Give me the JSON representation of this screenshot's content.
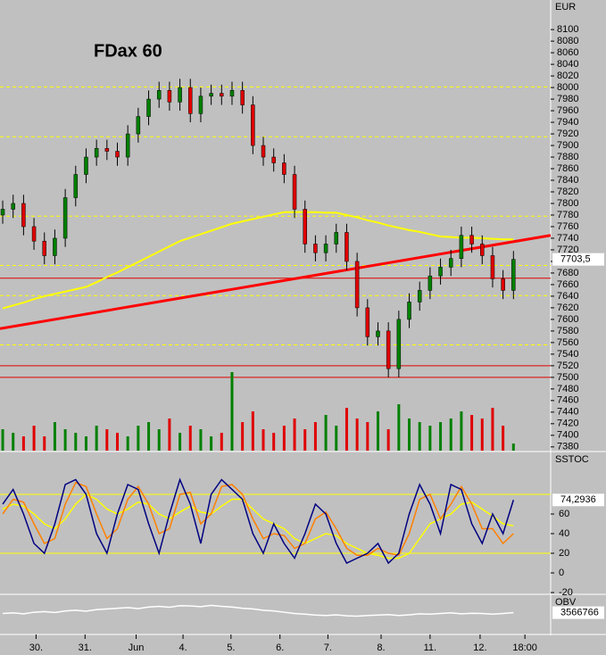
{
  "chart_data": [
    {
      "type": "candlestick",
      "title": "FDax 60",
      "axis_label": "EUR",
      "last_label": {
        "value": 7703.5,
        "label": "7703,5"
      },
      "up_color": "#008000",
      "down_color": "#e00000",
      "ma_color": "#ffff00",
      "xlim": [
        -0.26,
        52.57
      ],
      "xticks": [
        {
          "value": 3.2,
          "label": "30."
        },
        {
          "value": 7.9,
          "label": "31."
        },
        {
          "value": 12.8,
          "label": "Jun"
        },
        {
          "value": 17.3,
          "label": "4."
        },
        {
          "value": 21.9,
          "label": "5."
        },
        {
          "value": 26.6,
          "label": "6."
        },
        {
          "value": 31.2,
          "label": "7."
        },
        {
          "value": 36.3,
          "label": "8."
        },
        {
          "value": 41,
          "label": "11."
        },
        {
          "value": 45.8,
          "label": "12."
        },
        {
          "value": 50.1,
          "label": "18:00"
        }
      ],
      "ylim": [
        7372,
        8151
      ],
      "yticks": [
        8100,
        8080,
        8060,
        8040,
        8020,
        8000,
        7980,
        7960,
        7940,
        7920,
        7900,
        7880,
        7860,
        7840,
        7820,
        7800,
        7780,
        7760,
        7740,
        7720,
        7700,
        7680,
        7660,
        7640,
        7620,
        7600,
        7580,
        7560,
        7540,
        7520,
        7500,
        7480,
        7460,
        7440,
        7420,
        7400,
        7380
      ],
      "candles": [
        [
          7780,
          7805,
          7765,
          7790
        ],
        [
          7790,
          7815,
          7775,
          7800
        ],
        [
          7800,
          7815,
          7745,
          7760
        ],
        [
          7760,
          7775,
          7720,
          7735
        ],
        [
          7735,
          7750,
          7695,
          7710
        ],
        [
          7710,
          7755,
          7695,
          7740
        ],
        [
          7740,
          7825,
          7725,
          7810
        ],
        [
          7810,
          7865,
          7795,
          7850
        ],
        [
          7850,
          7895,
          7835,
          7880
        ],
        [
          7880,
          7910,
          7865,
          7895
        ],
        [
          7895,
          7910,
          7875,
          7890
        ],
        [
          7890,
          7905,
          7865,
          7880
        ],
        [
          7880,
          7935,
          7865,
          7920
        ],
        [
          7920,
          7965,
          7905,
          7950
        ],
        [
          7950,
          7995,
          7935,
          7980
        ],
        [
          7980,
          8010,
          7965,
          7995
        ],
        [
          7995,
          8010,
          7960,
          7975
        ],
        [
          7975,
          8015,
          7960,
          8000
        ],
        [
          8000,
          8015,
          7940,
          7955
        ],
        [
          7955,
          8000,
          7940,
          7985
        ],
        [
          7985,
          8005,
          7970,
          7990
        ],
        [
          7990,
          8005,
          7970,
          7985
        ],
        [
          7985,
          8010,
          7970,
          7995
        ],
        [
          7995,
          8010,
          7955,
          7970
        ],
        [
          7970,
          7985,
          7885,
          7900
        ],
        [
          7900,
          7915,
          7865,
          7880
        ],
        [
          7880,
          7895,
          7855,
          7870
        ],
        [
          7870,
          7885,
          7835,
          7850
        ],
        [
          7850,
          7865,
          7775,
          7790
        ],
        [
          7790,
          7805,
          7715,
          7730
        ],
        [
          7730,
          7745,
          7700,
          7715
        ],
        [
          7715,
          7745,
          7700,
          7730
        ],
        [
          7730,
          7765,
          7715,
          7750
        ],
        [
          7750,
          7765,
          7685,
          7700
        ],
        [
          7700,
          7715,
          7605,
          7620
        ],
        [
          7620,
          7635,
          7555,
          7570
        ],
        [
          7570,
          7595,
          7555,
          7580
        ],
        [
          7580,
          7595,
          7500,
          7515
        ],
        [
          7515,
          7615,
          7500,
          7600
        ],
        [
          7600,
          7645,
          7585,
          7630
        ],
        [
          7630,
          7665,
          7615,
          7650
        ],
        [
          7650,
          7690,
          7635,
          7675
        ],
        [
          7675,
          7705,
          7660,
          7690
        ],
        [
          7690,
          7720,
          7675,
          7705
        ],
        [
          7705,
          7760,
          7690,
          7745
        ],
        [
          7745,
          7760,
          7715,
          7730
        ],
        [
          7730,
          7745,
          7695,
          7710
        ],
        [
          7710,
          7725,
          7655,
          7670
        ],
        [
          7670,
          7685,
          7635,
          7650
        ],
        [
          7650,
          7718,
          7635,
          7703.5
        ]
      ],
      "volume": [
        30,
        25,
        20,
        35,
        20,
        40,
        30,
        25,
        20,
        35,
        30,
        25,
        20,
        35,
        40,
        30,
        45,
        25,
        35,
        30,
        20,
        25,
        110,
        40,
        55,
        30,
        25,
        35,
        45,
        30,
        40,
        50,
        35,
        60,
        45,
        40,
        55,
        30,
        65,
        45,
        40,
        35,
        40,
        45,
        55,
        50,
        45,
        60,
        35,
        10
      ],
      "ma": [
        7619,
        7624,
        7629,
        7635,
        7640,
        7644,
        7648,
        7652,
        7656,
        7664,
        7673,
        7681,
        7690,
        7699,
        7708,
        7717,
        7726,
        7735,
        7741,
        7747,
        7753,
        7759,
        7765,
        7769,
        7773,
        7777,
        7781,
        7785,
        7785,
        7785,
        7785,
        7784,
        7784,
        7780,
        7776,
        7771,
        7767,
        7762,
        7758,
        7754,
        7751,
        7747,
        7743,
        7742,
        7741,
        7741,
        7740,
        7739,
        7738,
        7738
      ],
      "hlines": [
        7671,
        7520,
        7500
      ],
      "hline_color": "#e00000",
      "levels": [
        8001,
        7915,
        7778,
        7693,
        7641,
        7556
      ],
      "level_color": "#ffff00",
      "trendline": [
        7584,
        7745
      ],
      "trendline_color": "#ff0000"
    },
    {
      "type": "line",
      "axis_label": "SSTOC",
      "last_label": {
        "value": 74.2936,
        "label": "74,2936"
      },
      "ylim": [
        -21.8,
        122.7
      ],
      "yticks": [
        60,
        40,
        20,
        0,
        -20
      ],
      "levels": [
        80,
        20
      ],
      "level_color": "#ffff00",
      "series": [
        {
          "color": "#ffff00",
          "values": [
            65,
            70,
            68,
            60,
            50,
            45,
            55,
            70,
            80,
            75,
            65,
            60,
            65,
            72,
            70,
            60,
            55,
            62,
            68,
            62,
            60,
            68,
            75,
            75,
            65,
            55,
            50,
            45,
            35,
            30,
            35,
            40,
            38,
            30,
            25,
            20,
            18,
            15,
            15,
            20,
            35,
            50,
            55,
            60,
            70,
            72,
            65,
            58,
            50,
            48
          ]
        },
        {
          "color": "#ff8000",
          "values": [
            60,
            75,
            72,
            50,
            30,
            35,
            70,
            92,
            88,
            60,
            35,
            45,
            75,
            88,
            70,
            40,
            45,
            80,
            82,
            50,
            60,
            88,
            90,
            80,
            55,
            35,
            40,
            38,
            25,
            30,
            55,
            62,
            45,
            25,
            18,
            18,
            25,
            20,
            18,
            40,
            75,
            80,
            55,
            70,
            88,
            70,
            45,
            45,
            30,
            40
          ]
        },
        {
          "color": "#000080",
          "values": [
            70,
            85,
            60,
            30,
            20,
            50,
            90,
            95,
            80,
            40,
            20,
            60,
            90,
            85,
            50,
            20,
            60,
            95,
            70,
            30,
            80,
            95,
            85,
            75,
            40,
            20,
            50,
            30,
            15,
            40,
            70,
            60,
            30,
            10,
            15,
            20,
            30,
            10,
            20,
            60,
            90,
            70,
            40,
            90,
            85,
            50,
            30,
            60,
            40,
            74.2936
          ]
        }
      ]
    },
    {
      "type": "line",
      "axis_label": "OBV",
      "last_label": {
        "value": 3566766,
        "label": "3566766"
      },
      "ylim": [
        3400000,
        3700000
      ],
      "series": [
        {
          "color": "#ffffff",
          "values": [
            3560000,
            3565000,
            3558000,
            3570000,
            3575000,
            3568000,
            3580000,
            3585000,
            3578000,
            3590000,
            3595000,
            3600000,
            3605000,
            3598000,
            3610000,
            3615000,
            3608000,
            3620000,
            3618000,
            3612000,
            3622000,
            3615000,
            3610000,
            3600000,
            3595000,
            3585000,
            3580000,
            3570000,
            3560000,
            3555000,
            3548000,
            3545000,
            3550000,
            3542000,
            3540000,
            3545000,
            3548000,
            3552000,
            3545000,
            3550000,
            3558000,
            3555000,
            3560000,
            3565000,
            3558000,
            3562000,
            3560000,
            3555000,
            3560000,
            3566766
          ]
        }
      ]
    }
  ]
}
